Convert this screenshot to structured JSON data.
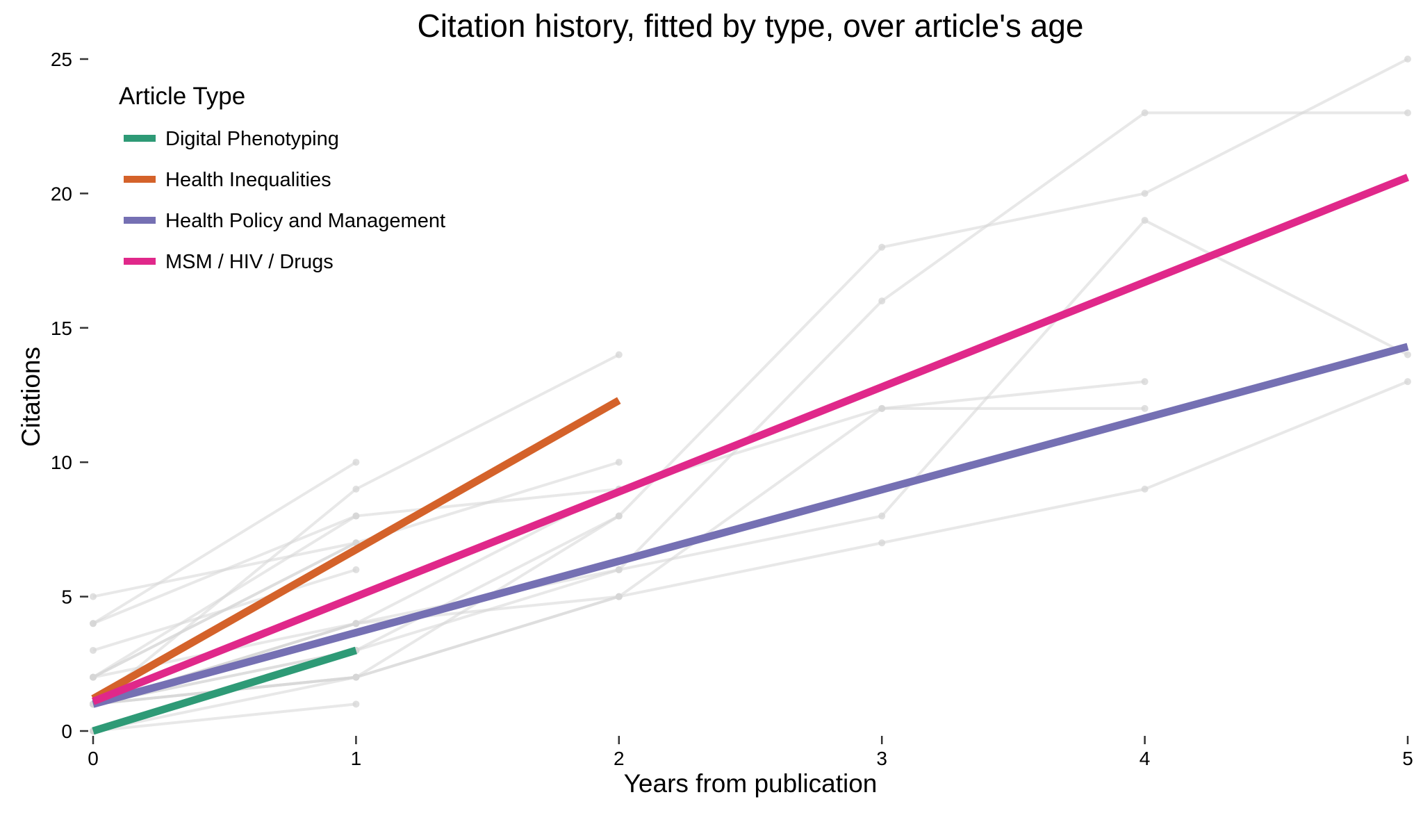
{
  "chart_data": {
    "type": "line",
    "title": "Citation history, fitted by type, over article's age",
    "xlabel": "Years from publication",
    "ylabel": "Citations",
    "xlim": [
      0,
      5
    ],
    "ylim": [
      0,
      25
    ],
    "xticks": [
      0,
      1,
      2,
      3,
      4,
      5
    ],
    "yticks": [
      0,
      5,
      10,
      15,
      20,
      25
    ],
    "grid": false,
    "legend": {
      "title": "Article Type",
      "position": "top-left"
    },
    "series": [
      {
        "name": "Digital Phenotyping",
        "color": "#2e9a76",
        "x": [
          0,
          1
        ],
        "y": [
          0,
          3
        ]
      },
      {
        "name": "Health Inequalities",
        "color": "#d4622a",
        "x": [
          0,
          2
        ],
        "y": [
          1.2,
          12.3
        ]
      },
      {
        "name": "Health Policy and Management",
        "color": "#7570b3",
        "x": [
          0,
          5
        ],
        "y": [
          1.0,
          14.3
        ]
      },
      {
        "name": "MSM / HIV / Drugs",
        "color": "#e0288a",
        "x": [
          0,
          5
        ],
        "y": [
          1.1,
          20.6
        ]
      }
    ],
    "background_lines": {
      "color": "#d6d6d6",
      "lines": [
        {
          "x": [
            0,
            1
          ],
          "y": [
            0,
            1
          ]
        },
        {
          "x": [
            0,
            1
          ],
          "y": [
            0,
            3
          ]
        },
        {
          "x": [
            0,
            1
          ],
          "y": [
            1,
            2
          ]
        },
        {
          "x": [
            0,
            1
          ],
          "y": [
            1,
            4
          ]
        },
        {
          "x": [
            0,
            1
          ],
          "y": [
            2,
            7
          ]
        },
        {
          "x": [
            0,
            1
          ],
          "y": [
            3,
            6
          ]
        },
        {
          "x": [
            0,
            1
          ],
          "y": [
            4,
            8
          ]
        },
        {
          "x": [
            0,
            1
          ],
          "y": [
            4,
            10
          ]
        },
        {
          "x": [
            0,
            1
          ],
          "y": [
            5,
            7
          ]
        },
        {
          "x": [
            0,
            1,
            2
          ],
          "y": [
            1,
            4,
            5
          ]
        },
        {
          "x": [
            0,
            1,
            2
          ],
          "y": [
            2,
            8,
            9
          ]
        },
        {
          "x": [
            0,
            1,
            2
          ],
          "y": [
            1,
            9,
            14
          ]
        },
        {
          "x": [
            0,
            1,
            2
          ],
          "y": [
            2,
            7,
            10
          ]
        },
        {
          "x": [
            0,
            1,
            2
          ],
          "y": [
            0,
            2,
            8
          ]
        },
        {
          "x": [
            0,
            1,
            2,
            3,
            4,
            5
          ],
          "y": [
            1,
            2,
            5,
            7,
            9,
            13
          ]
        },
        {
          "x": [
            0,
            1,
            2,
            3,
            4,
            5
          ],
          "y": [
            1,
            3,
            8,
            18,
            20,
            25
          ]
        },
        {
          "x": [
            0,
            1,
            2,
            3,
            4,
            5
          ],
          "y": [
            1,
            3,
            6,
            16,
            23,
            23
          ]
        },
        {
          "x": [
            0,
            1,
            2,
            3,
            4,
            5
          ],
          "y": [
            2,
            4,
            6,
            8,
            19,
            14
          ]
        },
        {
          "x": [
            0,
            1,
            2,
            3,
            4
          ],
          "y": [
            1,
            4,
            9,
            12,
            13
          ]
        },
        {
          "x": [
            0,
            1,
            2,
            3,
            4
          ],
          "y": [
            1,
            2,
            5,
            12,
            12
          ]
        }
      ]
    }
  }
}
